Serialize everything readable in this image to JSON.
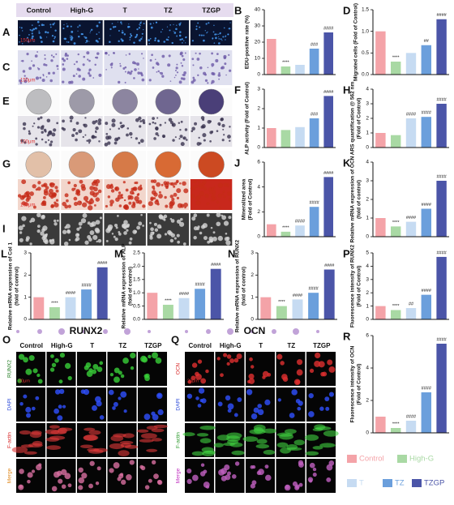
{
  "image_header": [
    "Control",
    "High-G",
    "T",
    "TZ",
    "TZGP"
  ],
  "image_panels": [
    {
      "letter": "A",
      "scale": "150μm"
    },
    {
      "letter": "C",
      "scale": "150μm"
    },
    {
      "letter": "E",
      "scale": "100μm"
    },
    {
      "letter": "G",
      "scale": "100μm"
    },
    {
      "letter": "I"
    }
  ],
  "fluorescence": [
    {
      "letter": "O",
      "title": "RUNX2",
      "header": [
        "Control",
        "High-G",
        "T",
        "TZ",
        "TZGP"
      ],
      "rows": [
        "RUNX2",
        "DAPI",
        "F-actin",
        "Merge"
      ],
      "scale": "20μm"
    },
    {
      "letter": "Q",
      "title": "OCN",
      "header": [
        "Control",
        "High-G",
        "T",
        "TZ",
        "TZGP"
      ],
      "rows": [
        "OCN",
        "DAPI",
        "F-actin",
        "Merge"
      ],
      "scale": "20μm"
    }
  ],
  "legend": [
    {
      "name": "Control",
      "color": "#f4a3a8"
    },
    {
      "name": "High-G",
      "color": "#a9d9a4"
    },
    {
      "name": "T",
      "color": "#c6dbf2"
    },
    {
      "name": "TZ",
      "color": "#6b9fdc"
    },
    {
      "name": "TZGP",
      "color": "#4b55a8"
    }
  ],
  "chart_data": [
    {
      "type": "bar",
      "panel": "B",
      "ylabel": [
        "EDU-positive rate (%)"
      ],
      "values": [
        22,
        5,
        6,
        16,
        26
      ],
      "annotations": [
        null,
        "****",
        null,
        "###",
        "####"
      ],
      "ylim": [
        0,
        40
      ],
      "yticks": [
        0,
        10,
        20,
        30,
        40
      ]
    },
    {
      "type": "bar",
      "panel": "D",
      "ylabel": [
        "Migrated cells (Fold of Control)"
      ],
      "values": [
        1.0,
        0.3,
        0.5,
        0.68,
        1.28
      ],
      "annotations": [
        null,
        "****",
        null,
        "##",
        "####"
      ],
      "ylim": [
        0,
        1.5
      ],
      "yticks": [
        {
          "value": 0,
          "label": "0.0"
        },
        0.5,
        {
          "value": 1,
          "label": "1.0"
        },
        1.5
      ]
    },
    {
      "type": "bar",
      "panel": "F",
      "ylabel": [
        "ALP activity (Fold of Control)"
      ],
      "values": [
        1.0,
        0.9,
        1.05,
        1.5,
        2.65
      ],
      "annotations": [
        null,
        null,
        null,
        "###",
        "####"
      ],
      "ylim": [
        0,
        3
      ],
      "yticks": [
        0,
        1,
        2,
        3
      ]
    },
    {
      "type": "bar",
      "panel": "H",
      "ylabel": [
        "ARS quantification @ 562 nm",
        "(Fold of Control)"
      ],
      "values": [
        1.0,
        0.85,
        2.0,
        2.1,
        3.0
      ],
      "annotations": [
        null,
        null,
        "####",
        "####",
        "####"
      ],
      "ylim": [
        0,
        4
      ],
      "yticks": [
        0,
        1,
        2,
        3,
        4
      ]
    },
    {
      "type": "bar",
      "panel": "J",
      "ylabel": [
        "Mineralized area",
        "(Fold of Control)"
      ],
      "values": [
        1.0,
        0.4,
        0.9,
        2.4,
        4.8
      ],
      "annotations": [
        null,
        "****",
        "####",
        "####",
        "####"
      ],
      "ylim": [
        0,
        6
      ],
      "yticks": [
        0,
        2,
        4,
        6
      ]
    },
    {
      "type": "bar",
      "panel": "K",
      "ylabel": [
        "Relative mRNA expression of OCN",
        "(fold of control)"
      ],
      "values": [
        1.0,
        0.55,
        0.8,
        1.5,
        3.0
      ],
      "annotations": [
        null,
        "****",
        "####",
        "####",
        "####"
      ],
      "ylim": [
        0,
        4
      ],
      "yticks": [
        0,
        1,
        2,
        3,
        4
      ]
    },
    {
      "type": "bar",
      "panel": "L",
      "ylabel": [
        "Relative mRNA expression of Col 1",
        "(fold of control)"
      ],
      "values": [
        1.0,
        0.55,
        1.0,
        1.35,
        2.35
      ],
      "annotations": [
        null,
        "****",
        "####",
        "####",
        "####"
      ],
      "ylim": [
        0,
        3
      ],
      "yticks": [
        0,
        1,
        2,
        3
      ]
    },
    {
      "type": "bar",
      "panel": "M",
      "ylabel": [
        "Relative mRNA expression of ALP",
        "(fold of control)"
      ],
      "values": [
        1.0,
        0.55,
        0.8,
        1.15,
        1.9
      ],
      "annotations": [
        null,
        "****",
        "####",
        "####",
        "####"
      ],
      "ylim": [
        0,
        2.5
      ],
      "yticks": [
        {
          "value": 0,
          "label": "0.0"
        },
        0.5,
        {
          "value": 1,
          "label": "1.0"
        },
        1.5,
        {
          "value": 2,
          "label": "2.0"
        },
        2.5
      ]
    },
    {
      "type": "bar",
      "panel": "N",
      "ylabel": [
        "Relative mRNA expression of RUNX2",
        "(fold of control)"
      ],
      "values": [
        1.0,
        0.6,
        0.9,
        1.2,
        2.25
      ],
      "annotations": [
        null,
        "****",
        "####",
        "####",
        "####"
      ],
      "ylim": [
        0,
        3
      ],
      "yticks": [
        0,
        1,
        2,
        3
      ]
    },
    {
      "type": "bar",
      "panel": "P",
      "ylabel": [
        "Fluorescence intensity of RUNX2",
        "(Fold of Control)"
      ],
      "values": [
        1.0,
        0.7,
        0.85,
        1.85,
        4.7
      ],
      "annotations": [
        null,
        "****",
        "##",
        "####",
        "####"
      ],
      "ylim": [
        0,
        5
      ],
      "yticks": [
        0,
        1,
        2,
        3,
        4,
        5
      ]
    },
    {
      "type": "bar",
      "panel": "R",
      "ylabel": [
        "Fluorescence intensity of OCN",
        "(Fold of Control)"
      ],
      "values": [
        1.0,
        0.3,
        0.75,
        2.5,
        5.5
      ],
      "annotations": [
        null,
        "****",
        "####",
        "####",
        "####"
      ],
      "ylim": [
        0,
        6
      ],
      "yticks": [
        0,
        2,
        4,
        6
      ]
    }
  ]
}
